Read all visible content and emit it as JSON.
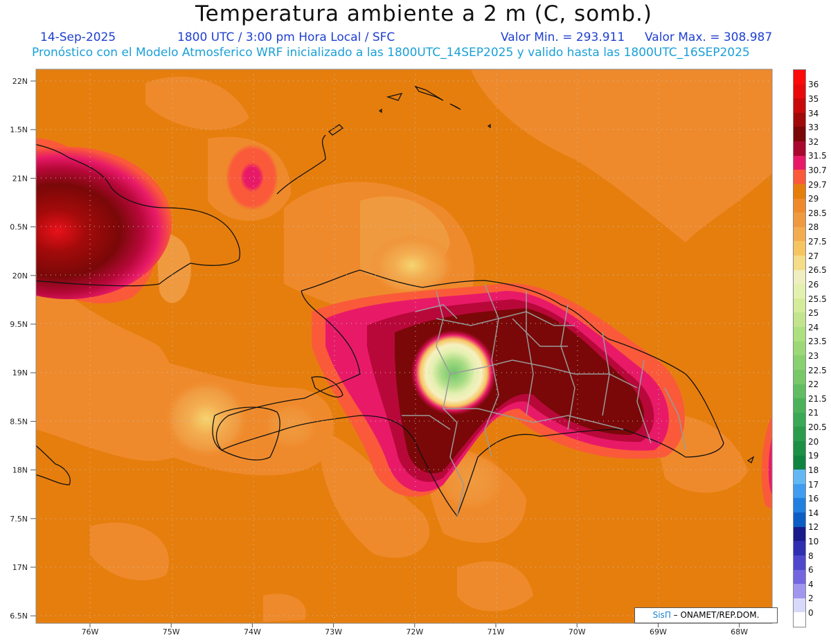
{
  "header": {
    "title": "Temperatura ambiente a 2 m (C, somb.)",
    "date": "14-Sep-2025",
    "time_label": "1800 UTC / 3:00 pm Hora Local / SFC",
    "min_label": "Valor Min. = 293.911",
    "max_label": "Valor Max. = 308.987",
    "forecast_text": "Pronóstico con el Modelo Atmosferico WRF inicializado a las 1800UTC_14SEP2025 y valido hasta las  1800UTC_16SEP2025"
  },
  "map": {
    "lat_labels": [
      "22N",
      "1.5N",
      "21N",
      "0.5N",
      "20N",
      "9.5N",
      "19N",
      "8.5N",
      "18N",
      "7.5N",
      "17N",
      "6.5N"
    ],
    "lon_labels": [
      "76W",
      "75W",
      "74W",
      "73W",
      "72W",
      "71W",
      "70W",
      "69W",
      "68W"
    ],
    "colors": {
      "background_fill": "#e67e0e",
      "coast_line": "#111111",
      "border_line": "#9a9a9a"
    }
  },
  "legend": {
    "colorbar": [
      {
        "label": "36",
        "color": "#fd0a0a"
      },
      {
        "label": "35",
        "color": "#e80a0a"
      },
      {
        "label": "34",
        "color": "#c80a0a"
      },
      {
        "label": "33",
        "color": "#a00a0a"
      },
      {
        "label": "32",
        "color": "#7a0808"
      },
      {
        "label": "31.5",
        "color": "#a8082e"
      },
      {
        "label": "30.7",
        "color": "#e81a68"
      },
      {
        "label": "29.7",
        "color": "#fa5a3a"
      },
      {
        "label": "29",
        "color": "#e67e0e"
      },
      {
        "label": "28.5",
        "color": "#ef8a2c"
      },
      {
        "label": "28",
        "color": "#f09a40"
      },
      {
        "label": "27.5",
        "color": "#f3ad50"
      },
      {
        "label": "27",
        "color": "#f6c562"
      },
      {
        "label": "26.5",
        "color": "#f4dc88"
      },
      {
        "label": "26",
        "color": "#eeeec0"
      },
      {
        "label": "25.5",
        "color": "#e4f0b0"
      },
      {
        "label": "25",
        "color": "#d4ec9a"
      },
      {
        "label": "24",
        "color": "#c2e48e"
      },
      {
        "label": "23.5",
        "color": "#ade07e"
      },
      {
        "label": "23",
        "color": "#9cd878"
      },
      {
        "label": "22.5",
        "color": "#88d070"
      },
      {
        "label": "22",
        "color": "#78c86a"
      },
      {
        "label": "21.5",
        "color": "#60bd62"
      },
      {
        "label": "21",
        "color": "#4cb25a"
      },
      {
        "label": "20.5",
        "color": "#3aa854"
      },
      {
        "label": "20",
        "color": "#2a9c4c"
      },
      {
        "label": "19",
        "color": "#1c9044"
      },
      {
        "label": "18",
        "color": "#0e8440"
      },
      {
        "label": "17",
        "color": "#63b8f4"
      },
      {
        "label": "16",
        "color": "#3f9cee"
      },
      {
        "label": "14",
        "color": "#1f80e0"
      },
      {
        "label": "12",
        "color": "#0c5ec4"
      },
      {
        "label": "10",
        "color": "#1a1a8a"
      },
      {
        "label": "8",
        "color": "#2f2fb0"
      },
      {
        "label": "6",
        "color": "#4f48cc"
      },
      {
        "label": "4",
        "color": "#7466e0"
      },
      {
        "label": "2",
        "color": "#a096ee"
      },
      {
        "label": "0",
        "color": "#d8d8fa"
      }
    ]
  },
  "credit": {
    "brand": "SisΠ",
    "text": "– ONAMET/REP.DOM."
  }
}
